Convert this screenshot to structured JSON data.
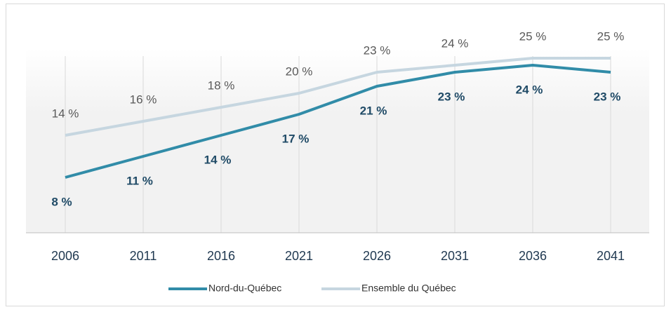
{
  "chart_data": {
    "type": "line",
    "categories": [
      "2006",
      "2011",
      "2016",
      "2021",
      "2026",
      "2031",
      "2036",
      "2041"
    ],
    "series": [
      {
        "name": "Nord-du-Québec",
        "color": "#318ca8",
        "values": [
          8,
          11,
          14,
          17,
          21,
          23,
          24,
          23
        ],
        "value_labels": [
          "8 %",
          "11 %",
          "14 %",
          "17 %",
          "21 %",
          "23 %",
          "24 %",
          "23 %"
        ]
      },
      {
        "name": "Ensemble du Québec",
        "color": "#c6d6e0",
        "values": [
          14,
          16,
          18,
          20,
          23,
          24,
          25,
          25
        ],
        "value_labels": [
          "14 %",
          "16 %",
          "18 %",
          "20 %",
          "23 %",
          "24 %",
          "25 %",
          "25 %"
        ]
      }
    ],
    "ylim": [
      0,
      30
    ]
  }
}
